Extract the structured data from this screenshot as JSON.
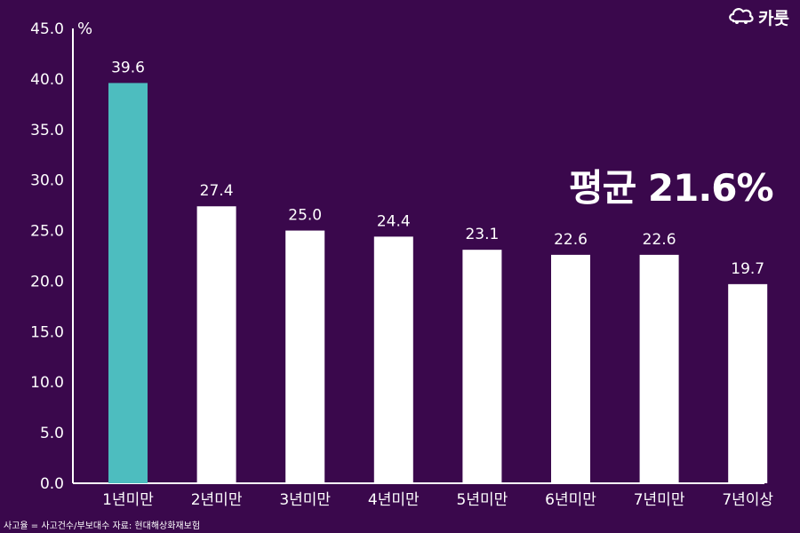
{
  "brand": {
    "logo_text": "카룻",
    "logo_icon": "car-cloud-icon"
  },
  "callout": {
    "average_text": "평균 21.6%"
  },
  "footnote": "사고율 = 사고건수/부보대수 자료: 현대해상화재보험",
  "colors": {
    "background": "#3a084c",
    "highlight_bar": "#4dbdbf",
    "bar": "#ffffff",
    "text": "#ffffff"
  },
  "chart_data": {
    "type": "bar",
    "title": "",
    "xlabel": "",
    "ylabel": "%",
    "categories": [
      "1년미만",
      "2년미만",
      "3년미만",
      "4년미만",
      "5년미만",
      "6년미만",
      "7년미만",
      "7년이상"
    ],
    "values": [
      39.6,
      27.4,
      25.0,
      24.4,
      23.1,
      22.6,
      22.6,
      19.7
    ],
    "value_labels": [
      "39.6",
      "27.4",
      "25.0",
      "24.4",
      "23.1",
      "22.6",
      "22.6",
      "19.7"
    ],
    "highlighted_index": 0,
    "ylim": [
      0,
      45
    ],
    "y_ticks": [
      "0.0",
      "5.0",
      "10.0",
      "15.0",
      "20.0",
      "25.0",
      "30.0",
      "35.0",
      "40.0",
      "45.0"
    ],
    "y_tick_values": [
      0,
      5,
      10,
      15,
      20,
      25,
      30,
      35,
      40,
      45
    ],
    "grid": false
  }
}
